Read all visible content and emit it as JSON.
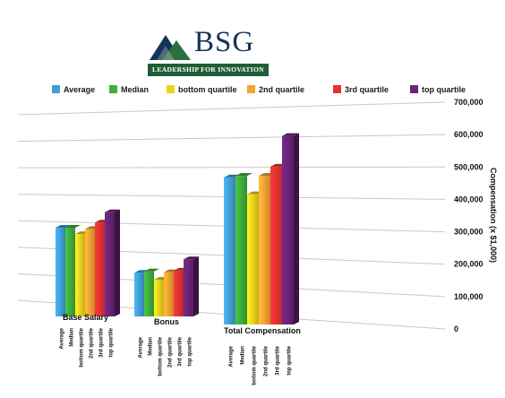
{
  "logo": {
    "text": "BSG",
    "tagline": "LEADERSHIP FOR INNOVATION"
  },
  "colors": {
    "average": "#41a0d8",
    "median": "#3fae3a",
    "bottom_quartile": "#ecd41c",
    "second_quartile": "#f2a532",
    "third_quartile": "#e63232",
    "top_quartile": "#6a2378"
  },
  "chart_data": {
    "type": "bar",
    "ylabel": "Compensation (x $1,000)",
    "ylim": [
      0,
      700000
    ],
    "yticks": [
      "700,000",
      "600,000",
      "500,000",
      "400,000",
      "300,000",
      "200,000",
      "100,000",
      "0"
    ],
    "categories": [
      "Base Salary",
      "Bonus",
      "Total Compensation"
    ],
    "bar_labels": [
      "Average",
      "Median",
      "bottom quartile",
      "2nd quartile",
      "3rd quartile",
      "top quartile"
    ],
    "series": [
      {
        "name": "Average",
        "values": [
          345000,
          170000,
          480000
        ]
      },
      {
        "name": "Median",
        "values": [
          345000,
          175000,
          485000
        ]
      },
      {
        "name": "bottom quartile",
        "values": [
          320000,
          143000,
          425000
        ]
      },
      {
        "name": "2nd quartile",
        "values": [
          340000,
          172000,
          485000
        ]
      },
      {
        "name": "3rd quartile",
        "values": [
          365000,
          178000,
          515000
        ]
      },
      {
        "name": "top quartile",
        "values": [
          405000,
          222000,
          615000
        ]
      }
    ],
    "legend_position": "top",
    "grid": true
  }
}
